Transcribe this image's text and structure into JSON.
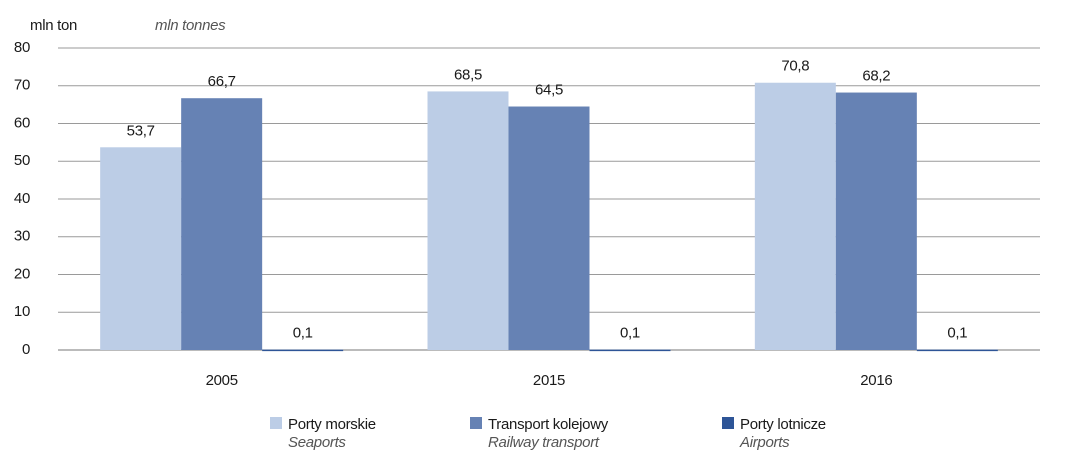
{
  "chart_data": {
    "type": "bar",
    "ylabel": "mln ton",
    "ylabel_en": "mln tonnes",
    "categories": [
      "2005",
      "2015",
      "2016"
    ],
    "series": [
      {
        "name": "Porty morskie",
        "name_en": "Seaports",
        "color": "#bccde6",
        "values": [
          53.7,
          68.5,
          70.8
        ],
        "value_labels": [
          "53,7",
          "68,5",
          "70,8"
        ]
      },
      {
        "name": "Transport kolejowy",
        "name_en": "Railway transport",
        "color": "#6682b4",
        "values": [
          66.7,
          64.5,
          68.2
        ],
        "value_labels": [
          "66,7",
          "64,5",
          "68,2"
        ]
      },
      {
        "name": "Porty lotnicze",
        "name_en": "Airports",
        "color": "#2e5597",
        "values": [
          0.1,
          0.1,
          0.1
        ],
        "value_labels": [
          "0,1",
          "0,1",
          "0,1"
        ]
      }
    ],
    "ylim": [
      0,
      80
    ],
    "yticks": [
      0,
      10,
      20,
      30,
      40,
      50,
      60,
      70,
      80
    ],
    "grid": true,
    "legend": "bottom"
  }
}
